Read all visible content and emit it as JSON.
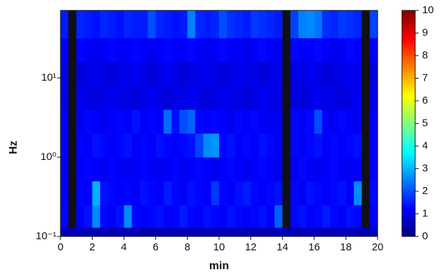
{
  "chart_data": {
    "type": "heatmap",
    "xlabel": "min",
    "ylabel": "Hz",
    "xlim": [
      0,
      20
    ],
    "xticks": [
      0,
      2,
      4,
      6,
      8,
      10,
      12,
      14,
      16,
      18,
      20
    ],
    "ylim": [
      0.1,
      71
    ],
    "ylog": true,
    "yticks": [
      {
        "value": 0.1,
        "label": "10⁻¹"
      },
      {
        "value": 1,
        "label": "10⁰"
      },
      {
        "value": 10,
        "label": "10¹"
      }
    ],
    "y_bins": [
      0.1,
      0.13,
      0.25,
      0.5,
      1,
      2,
      4,
      8,
      16,
      32,
      71
    ],
    "colormap": "jet",
    "missing_color": "#111111",
    "colorbar": {
      "lim": [
        0,
        10
      ],
      "ticks": [
        0,
        1,
        2,
        3,
        4,
        5,
        6,
        7,
        8,
        9,
        10
      ]
    },
    "values": [
      [
        0.5,
        0.5,
        0.6,
        0.5,
        0.5,
        0.6,
        0.5,
        0.5,
        0.5,
        0.6,
        0.5,
        0.4,
        0.5,
        0.5,
        0.6,
        0.5,
        0.5,
        0.5,
        0.6,
        0.5,
        0.5,
        0.5,
        0.6,
        0.5,
        0.5,
        0.5,
        0.5,
        0.6,
        0.5,
        0.5,
        0.5,
        0.6,
        0.5,
        0.5,
        0.5,
        0.6,
        0.5,
        0.5,
        0.5,
        0.5
      ],
      [
        1.3,
        null,
        1.2,
        1.4,
        2.6,
        1.3,
        1.2,
        1.4,
        2.6,
        1.3,
        1.2,
        1.3,
        1.4,
        1.2,
        1.3,
        1.5,
        1.3,
        1.2,
        1.4,
        1.3,
        1.2,
        1.4,
        1.3,
        1.2,
        1.3,
        1.4,
        1.2,
        2.2,
        null,
        1.3,
        1.4,
        1.2,
        1.3,
        1.5,
        1.3,
        1.2,
        1.4,
        1.3,
        null,
        1.2
      ],
      [
        1.2,
        null,
        1.3,
        1.2,
        3.0,
        1.4,
        1.3,
        1.2,
        1.3,
        1.2,
        1.4,
        1.3,
        1.2,
        1.5,
        1.3,
        1.2,
        1.4,
        1.3,
        1.2,
        1.8,
        1.3,
        1.2,
        1.4,
        1.5,
        1.3,
        1.2,
        1.3,
        1.4,
        null,
        1.3,
        1.2,
        1.4,
        1.3,
        1.2,
        1.3,
        1.4,
        1.2,
        2.6,
        null,
        1.3
      ],
      [
        1.1,
        null,
        1.2,
        1.3,
        1.2,
        1.1,
        1.3,
        1.2,
        1.1,
        1.2,
        1.3,
        1.2,
        1.1,
        1.2,
        1.3,
        1.1,
        1.2,
        1.3,
        1.2,
        1.1,
        1.2,
        1.3,
        1.2,
        1.1,
        1.2,
        1.3,
        1.2,
        1.1,
        null,
        1.2,
        1.3,
        1.2,
        1.1,
        1.2,
        1.3,
        1.2,
        1.1,
        1.2,
        null,
        1.2
      ],
      [
        1.2,
        null,
        1.3,
        1.2,
        1.4,
        1.3,
        1.2,
        1.3,
        1.4,
        1.2,
        1.3,
        1.2,
        1.4,
        1.3,
        1.2,
        1.3,
        1.4,
        1.9,
        2.6,
        2.7,
        1.3,
        1.4,
        1.2,
        1.3,
        1.2,
        1.4,
        1.3,
        1.2,
        null,
        1.3,
        1.2,
        1.3,
        1.4,
        1.2,
        1.3,
        1.2,
        1.3,
        1.4,
        null,
        1.2
      ],
      [
        1.2,
        null,
        1.1,
        1.3,
        1.2,
        1.1,
        1.2,
        1.3,
        1.2,
        1.4,
        1.2,
        1.3,
        1.2,
        2.3,
        1.4,
        2.0,
        2.2,
        1.3,
        1.2,
        1.3,
        1.2,
        1.1,
        1.3,
        1.2,
        1.3,
        1.2,
        1.1,
        1.2,
        null,
        1.3,
        1.2,
        1.3,
        2.0,
        1.2,
        1.1,
        1.3,
        1.2,
        1.1,
        null,
        1.2
      ],
      [
        1.0,
        null,
        1.1,
        1.0,
        0.9,
        1.0,
        1.1,
        1.0,
        1.0,
        0.9,
        1.0,
        1.1,
        1.0,
        0.9,
        1.0,
        1.0,
        1.1,
        1.0,
        0.9,
        1.0,
        1.1,
        1.0,
        1.0,
        0.9,
        1.0,
        1.1,
        1.0,
        1.0,
        null,
        1.0,
        0.9,
        1.0,
        1.1,
        1.0,
        1.0,
        0.9,
        1.0,
        1.1,
        null,
        1.0
      ],
      [
        1.0,
        null,
        0.9,
        1.0,
        1.1,
        1.0,
        0.9,
        1.0,
        1.0,
        1.1,
        1.0,
        0.9,
        1.0,
        1.1,
        1.0,
        0.9,
        1.0,
        1.0,
        1.1,
        1.0,
        0.9,
        1.0,
        1.1,
        1.0,
        1.0,
        0.9,
        1.0,
        1.1,
        null,
        1.0,
        1.0,
        1.1,
        1.0,
        0.9,
        1.0,
        1.0,
        1.1,
        1.0,
        null,
        0.9
      ],
      [
        1.2,
        null,
        1.3,
        1.2,
        1.1,
        1.2,
        1.3,
        1.2,
        1.2,
        1.3,
        1.2,
        1.1,
        1.2,
        1.3,
        1.2,
        1.2,
        1.3,
        1.2,
        1.1,
        1.2,
        1.3,
        1.2,
        1.2,
        1.1,
        1.2,
        1.3,
        1.2,
        1.2,
        null,
        1.3,
        1.2,
        1.2,
        1.3,
        1.2,
        1.1,
        1.2,
        1.3,
        1.2,
        null,
        1.2
      ],
      [
        1.5,
        null,
        1.6,
        1.5,
        1.4,
        1.6,
        1.5,
        1.4,
        1.6,
        1.5,
        1.5,
        2.0,
        1.6,
        1.5,
        1.4,
        1.5,
        2.5,
        1.6,
        1.5,
        1.6,
        2.0,
        1.7,
        1.6,
        1.5,
        1.8,
        1.7,
        1.6,
        1.5,
        null,
        1.9,
        2.5,
        2.6,
        2.4,
        1.7,
        1.6,
        1.8,
        1.7,
        1.6,
        null,
        1.9
      ]
    ]
  }
}
